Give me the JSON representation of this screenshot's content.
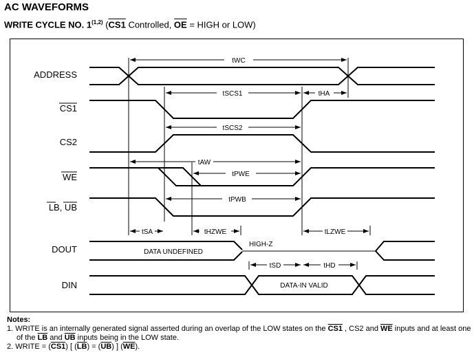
{
  "title": "AC WAVEFORMS",
  "subtitle": {
    "prefix": "WRITE CYCLE NO. 1",
    "refs": "(1,2)",
    "open": " (",
    "cs1": "CS1",
    "mid": " Controlled, ",
    "oe": "OE",
    "rest": " = HIGH or LOW)"
  },
  "signals": {
    "address": "ADDRESS",
    "cs1": "CS1",
    "cs2": "CS2",
    "we": "WE",
    "lbub": "LB, UB",
    "dout": "DOUT",
    "din": "DIN"
  },
  "timing": {
    "twc": "tWC",
    "tscs1": "tSCS1",
    "tha": "tHA",
    "tscs2": "tSCS2",
    "taw": "tAW",
    "tpwe": "tPWE",
    "tpwb": "tPWB",
    "tsa": "tSA",
    "thzwe": "tHZWE",
    "tlzwe": "tLZWE",
    "tsd": "tSD",
    "thd": "tHD"
  },
  "data_labels": {
    "data_undefined": "DATA UNDEFINED",
    "high_z": "HIGH-Z",
    "data_in_valid": "DATA-IN VALID"
  },
  "notes": {
    "heading": "Notes:",
    "n1": {
      "num": "1.",
      "a": "WRITE is an internally generated signal asserted during an overlap of the LOW states on the ",
      "cs1": "CS1",
      "b": " , CS2 and ",
      "we": "WE",
      "c": " inputs and at least one of the ",
      "lb": "LB",
      "d": " and ",
      "ub": "UB",
      "e": " inputs being in the LOW state."
    },
    "n2": {
      "num": "2.",
      "a": "WRITE = (",
      "cs1": "CS1",
      "b": ") [ (",
      "lb": "LB",
      "c": ") = (",
      "ub": "UB",
      "d": ") ] (",
      "we": "WE",
      "e": ")."
    }
  }
}
